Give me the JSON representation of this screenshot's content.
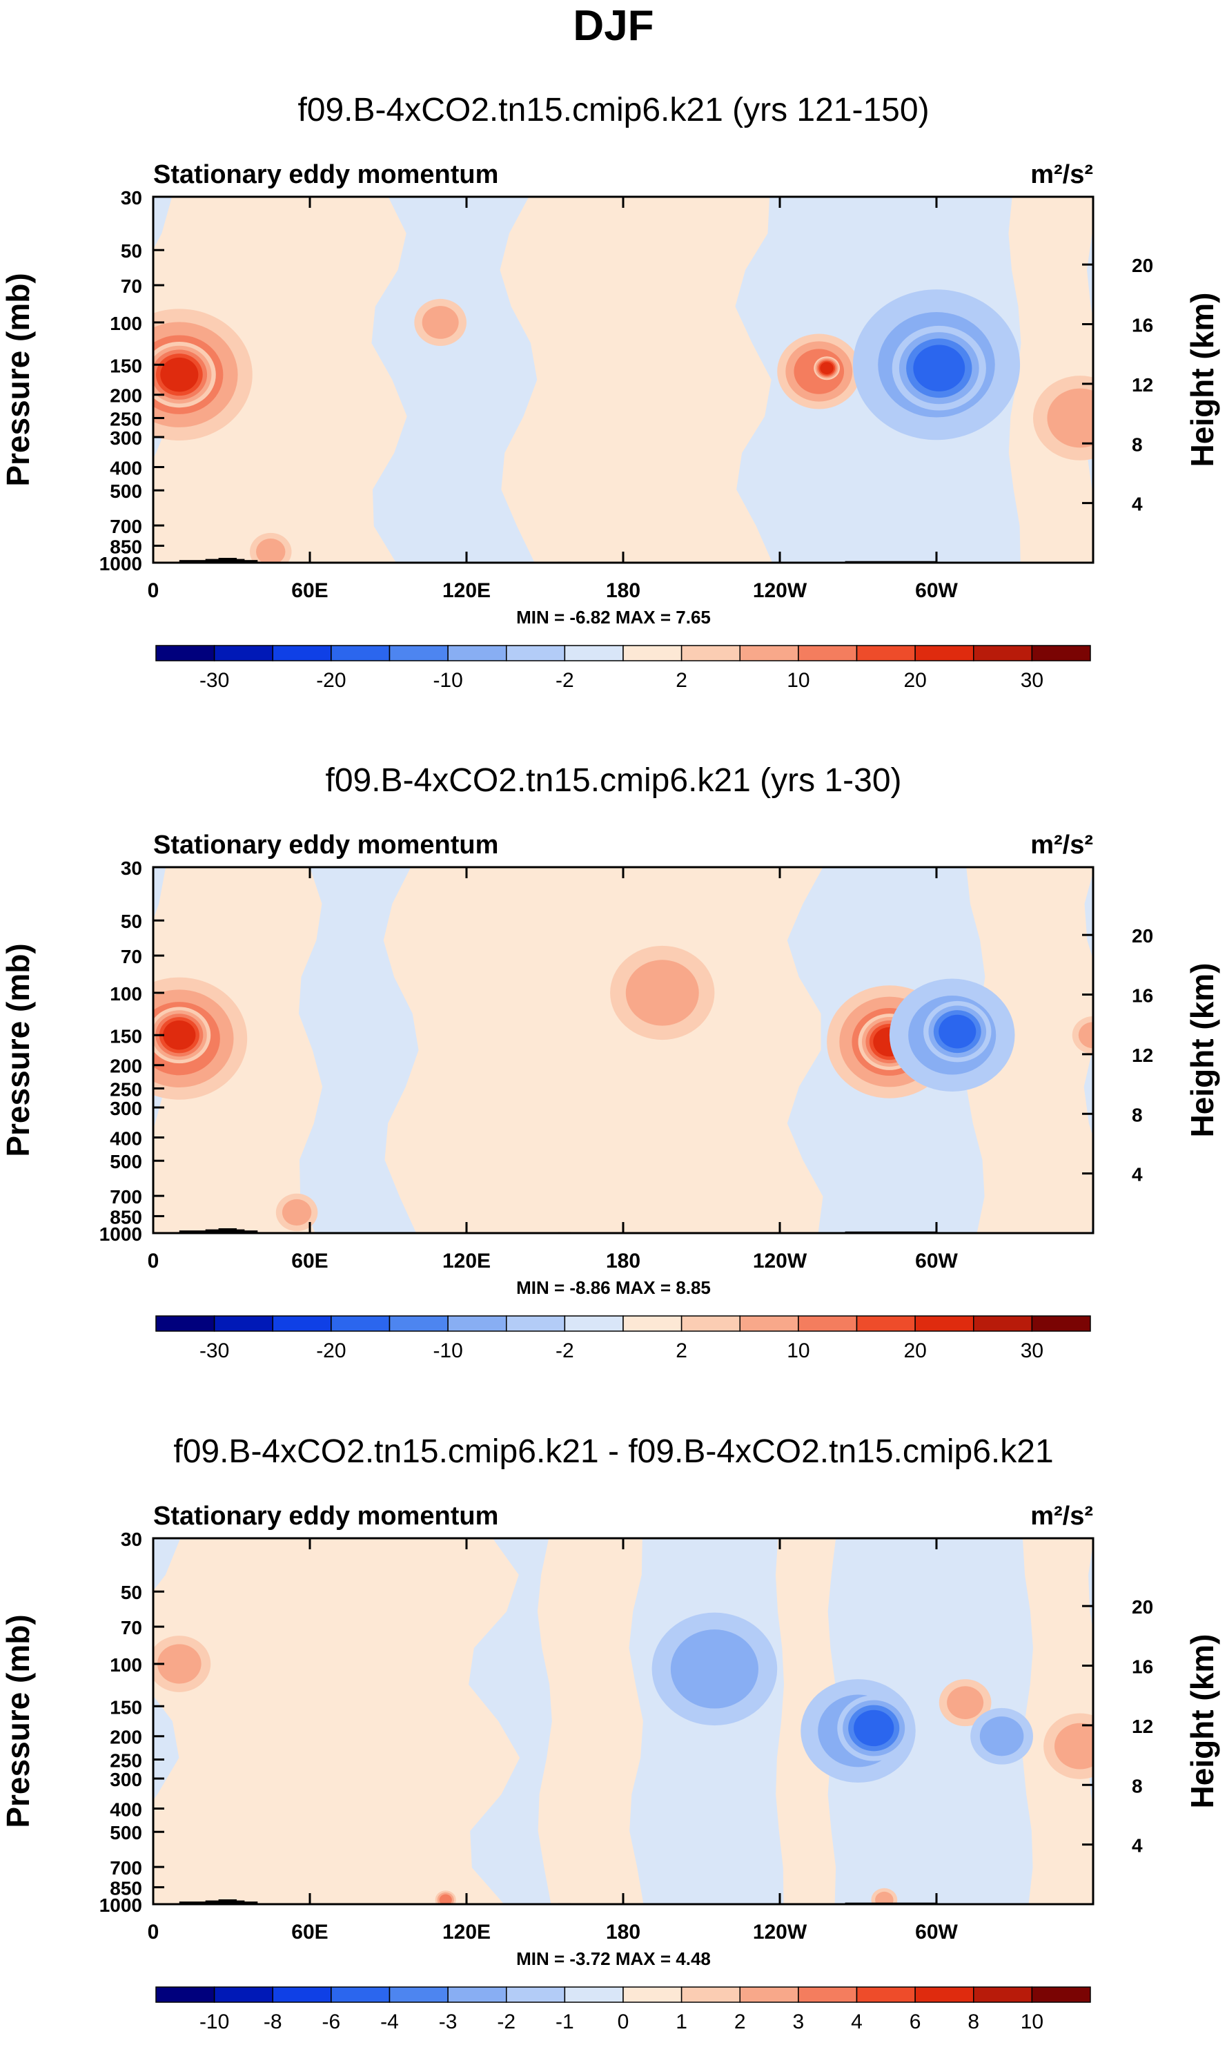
{
  "main_title": "DJF",
  "colors": {
    "ramp_main": [
      "#00007d",
      "#0019b7",
      "#0f40e6",
      "#2b66ee",
      "#4d85f0",
      "#88aef3",
      "#b3ccf7",
      "#d9e6f8",
      "#fde8d5",
      "#fbcdb3",
      "#f8a88a",
      "#f47d5e",
      "#ee4c2a",
      "#df2b0e",
      "#b81b0a",
      "#7a0403"
    ],
    "ramp_diff": [
      "#00007d",
      "#0019b7",
      "#0f40e6",
      "#2b66ee",
      "#4d85f0",
      "#88aef3",
      "#b3ccf7",
      "#d9e6f8",
      "#fde8d5",
      "#fbcdb3",
      "#f8a88a",
      "#f47d5e",
      "#ee4c2a",
      "#df2b0e",
      "#b81b0a",
      "#7a0403"
    ],
    "topography": "#000000"
  },
  "chart_data": [
    {
      "type": "heatmap",
      "title": "f09.B-4xCO2.tn15.cmip6.k21 (yrs 121-150)",
      "subtitle": "Stationary eddy momentum",
      "units": "m²/s²",
      "xlabel": "",
      "ylabel": "Pressure (mb)",
      "y2label": "Height (km)",
      "x_ticks": [
        "0",
        "60E",
        "120E",
        "180",
        "120W",
        "60W"
      ],
      "x_tick_values": [
        0,
        60,
        120,
        180,
        240,
        300
      ],
      "xlim": [
        0,
        360
      ],
      "y_ticks": [
        "30",
        "50",
        "70",
        "100",
        "150",
        "200",
        "250",
        "300",
        "400",
        "500",
        "700",
        "850",
        "1000"
      ],
      "y_tick_values": [
        30,
        50,
        70,
        100,
        150,
        200,
        250,
        300,
        400,
        500,
        700,
        850,
        1000
      ],
      "ylim": [
        1000,
        30
      ],
      "y2_ticks": [
        "20",
        "16",
        "12",
        "8",
        "4"
      ],
      "y2_tick_values": [
        20,
        16,
        12,
        8,
        4
      ],
      "min_max_text": "MIN = -6.82 MAX = 7.65",
      "colorbar_labels": [
        "-30",
        "-20",
        "-10",
        "-2",
        "2",
        "10",
        "20",
        "30"
      ],
      "colorbar_label_positions": [
        1,
        3,
        5,
        7,
        9,
        11,
        13,
        15
      ],
      "background_level": -1,
      "features": [
        {
          "lon": 10,
          "p": 165,
          "dlon": 28,
          "level": 4,
          "kind": "pos"
        },
        {
          "lon": 10,
          "p": 165,
          "dlon": 14,
          "level": 6,
          "kind": "pos"
        },
        {
          "lon": 45,
          "p": 900,
          "dlon": 8,
          "level": 3,
          "kind": "pos"
        },
        {
          "lon": 110,
          "p": 100,
          "dlon": 10,
          "level": 3,
          "kind": "pos"
        },
        {
          "lon": 255,
          "p": 160,
          "dlon": 16,
          "level": 4,
          "kind": "pos"
        },
        {
          "lon": 258,
          "p": 155,
          "dlon": 5,
          "level": 6,
          "kind": "pos"
        },
        {
          "lon": 300,
          "p": 150,
          "dlon": 32,
          "level": -3,
          "kind": "neg"
        },
        {
          "lon": 301,
          "p": 155,
          "dlon": 18,
          "level": -5,
          "kind": "neg"
        },
        {
          "lon": 355,
          "p": 250,
          "dlon": 18,
          "level": 3,
          "kind": "pos"
        }
      ]
    },
    {
      "type": "heatmap",
      "title": "f09.B-4xCO2.tn15.cmip6.k21 (yrs 1-30)",
      "subtitle": "Stationary eddy momentum",
      "units": "m²/s²",
      "xlabel": "",
      "ylabel": "Pressure (mb)",
      "y2label": "Height (km)",
      "x_ticks": [
        "0",
        "60E",
        "120E",
        "180",
        "120W",
        "60W"
      ],
      "x_tick_values": [
        0,
        60,
        120,
        180,
        240,
        300
      ],
      "xlim": [
        0,
        360
      ],
      "y_ticks": [
        "30",
        "50",
        "70",
        "100",
        "150",
        "200",
        "250",
        "300",
        "400",
        "500",
        "700",
        "850",
        "1000"
      ],
      "y_tick_values": [
        30,
        50,
        70,
        100,
        150,
        200,
        250,
        300,
        400,
        500,
        700,
        850,
        1000
      ],
      "ylim": [
        1000,
        30
      ],
      "y2_ticks": [
        "20",
        "16",
        "12",
        "8",
        "4"
      ],
      "y2_tick_values": [
        20,
        16,
        12,
        8,
        4
      ],
      "min_max_text": "MIN = -8.86 MAX = 8.85",
      "colorbar_labels": [
        "-30",
        "-20",
        "-10",
        "-2",
        "2",
        "10",
        "20",
        "30"
      ],
      "colorbar_label_positions": [
        1,
        3,
        5,
        7,
        9,
        11,
        13,
        15
      ],
      "background_level": -1,
      "features": [
        {
          "lon": 10,
          "p": 155,
          "dlon": 26,
          "level": 4,
          "kind": "pos"
        },
        {
          "lon": 10,
          "p": 150,
          "dlon": 12,
          "level": 6,
          "kind": "pos"
        },
        {
          "lon": 55,
          "p": 820,
          "dlon": 8,
          "level": 3,
          "kind": "pos"
        },
        {
          "lon": 195,
          "p": 100,
          "dlon": 20,
          "level": 3,
          "kind": "pos"
        },
        {
          "lon": 282,
          "p": 160,
          "dlon": 24,
          "level": 4,
          "kind": "pos"
        },
        {
          "lon": 282,
          "p": 160,
          "dlon": 12,
          "level": 6,
          "kind": "pos"
        },
        {
          "lon": 306,
          "p": 150,
          "dlon": 24,
          "level": -3,
          "kind": "neg"
        },
        {
          "lon": 308,
          "p": 145,
          "dlon": 13,
          "level": -5,
          "kind": "neg"
        },
        {
          "lon": 360,
          "p": 150,
          "dlon": 8,
          "level": 3,
          "kind": "pos"
        }
      ]
    },
    {
      "type": "heatmap",
      "title": "f09.B-4xCO2.tn15.cmip6.k21 - f09.B-4xCO2.tn15.cmip6.k21",
      "subtitle": "Stationary eddy momentum",
      "units": "m²/s²",
      "xlabel": "",
      "ylabel": "Pressure (mb)",
      "y2label": "Height (km)",
      "x_ticks": [
        "0",
        "60E",
        "120E",
        "180",
        "120W",
        "60W"
      ],
      "x_tick_values": [
        0,
        60,
        120,
        180,
        240,
        300
      ],
      "xlim": [
        0,
        360
      ],
      "y_ticks": [
        "30",
        "50",
        "70",
        "100",
        "150",
        "200",
        "250",
        "300",
        "400",
        "500",
        "700",
        "850",
        "1000"
      ],
      "y_tick_values": [
        30,
        50,
        70,
        100,
        150,
        200,
        250,
        300,
        400,
        500,
        700,
        850,
        1000
      ],
      "ylim": [
        1000,
        30
      ],
      "y2_ticks": [
        "20",
        "16",
        "12",
        "8",
        "4"
      ],
      "y2_tick_values": [
        20,
        16,
        12,
        8,
        4
      ],
      "min_max_text": "MIN = -3.72 MAX = 4.48",
      "colorbar_labels": [
        "-10",
        "-8",
        "-6",
        "-4",
        "-3",
        "-2",
        "-1",
        "0",
        "1",
        "2",
        "3",
        "4",
        "6",
        "8",
        "10"
      ],
      "colorbar_label_positions": [
        1,
        2,
        3,
        4,
        5,
        6,
        7,
        8,
        9,
        10,
        11,
        12,
        13,
        14,
        15
      ],
      "background_level": -1,
      "features": [
        {
          "lon": 10,
          "p": 100,
          "dlon": 12,
          "level": 3,
          "kind": "pos"
        },
        {
          "lon": 215,
          "p": 105,
          "dlon": 24,
          "level": -3,
          "kind": "neg"
        },
        {
          "lon": 270,
          "p": 190,
          "dlon": 22,
          "level": -3,
          "kind": "neg"
        },
        {
          "lon": 276,
          "p": 185,
          "dlon": 14,
          "level": -5,
          "kind": "neg"
        },
        {
          "lon": 311,
          "p": 145,
          "dlon": 10,
          "level": 3,
          "kind": "pos"
        },
        {
          "lon": 325,
          "p": 200,
          "dlon": 12,
          "level": -3,
          "kind": "neg"
        },
        {
          "lon": 355,
          "p": 220,
          "dlon": 14,
          "level": 3,
          "kind": "pos"
        },
        {
          "lon": 112,
          "p": 960,
          "dlon": 4,
          "level": 4,
          "kind": "pos"
        },
        {
          "lon": 280,
          "p": 960,
          "dlon": 5,
          "level": 3,
          "kind": "pos"
        }
      ]
    }
  ]
}
